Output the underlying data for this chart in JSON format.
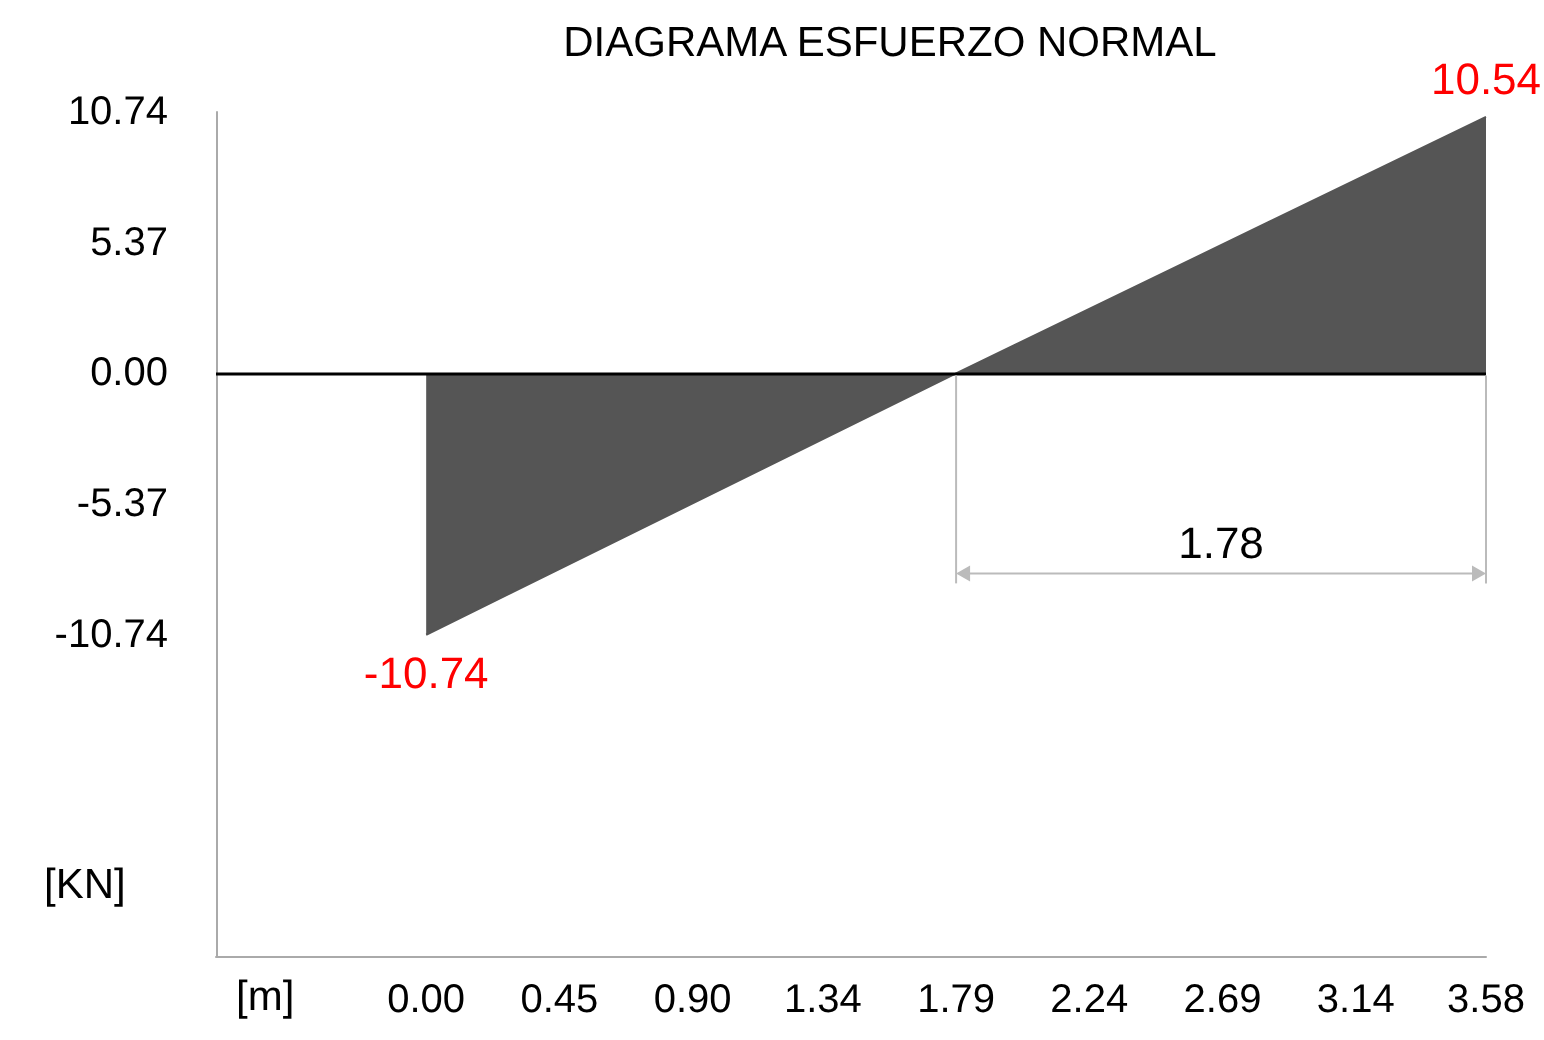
{
  "chart_data": {
    "type": "area",
    "title": "DIAGRAMA ESFUERZO NORMAL",
    "xlabel": "[m]",
    "ylabel": "[KN]",
    "x": [
      0,
      1.79,
      3.58
    ],
    "series": [
      {
        "color": "#555555",
        "values": [
          -10.74,
          0,
          10.54
        ],
        "value_labels": [
          "-10.74",
          null,
          "10.54"
        ]
      }
    ],
    "xlim": [
      -0.71,
      3.58
    ],
    "xticks": [
      {
        "value": 0,
        "label": "0.00"
      },
      {
        "value": 0.45,
        "label": "0.45"
      },
      {
        "value": 0.9,
        "label": "0.90"
      },
      {
        "value": 1.34,
        "label": "1.34"
      },
      {
        "value": 1.79,
        "label": "1.79"
      },
      {
        "value": 2.24,
        "label": "2.24"
      },
      {
        "value": 2.69,
        "label": "2.69"
      },
      {
        "value": 3.14,
        "label": "3.14"
      },
      {
        "value": 3.58,
        "label": "3.58"
      }
    ],
    "ylim": [
      -23.94,
      10.74
    ],
    "yticks": [
      {
        "value": 10.74,
        "label": "10.74"
      },
      {
        "value": 5.37,
        "label": "5.37"
      },
      {
        "value": 0,
        "label": "0.00"
      },
      {
        "value": -5.37,
        "label": "-5.37"
      },
      {
        "value": -10.74,
        "label": "-10.74"
      }
    ],
    "ref_lines": [
      {
        "axis": "y",
        "value": 0,
        "color": "#000000"
      }
    ],
    "annotations": [
      "1.78"
    ],
    "grid": false
  }
}
